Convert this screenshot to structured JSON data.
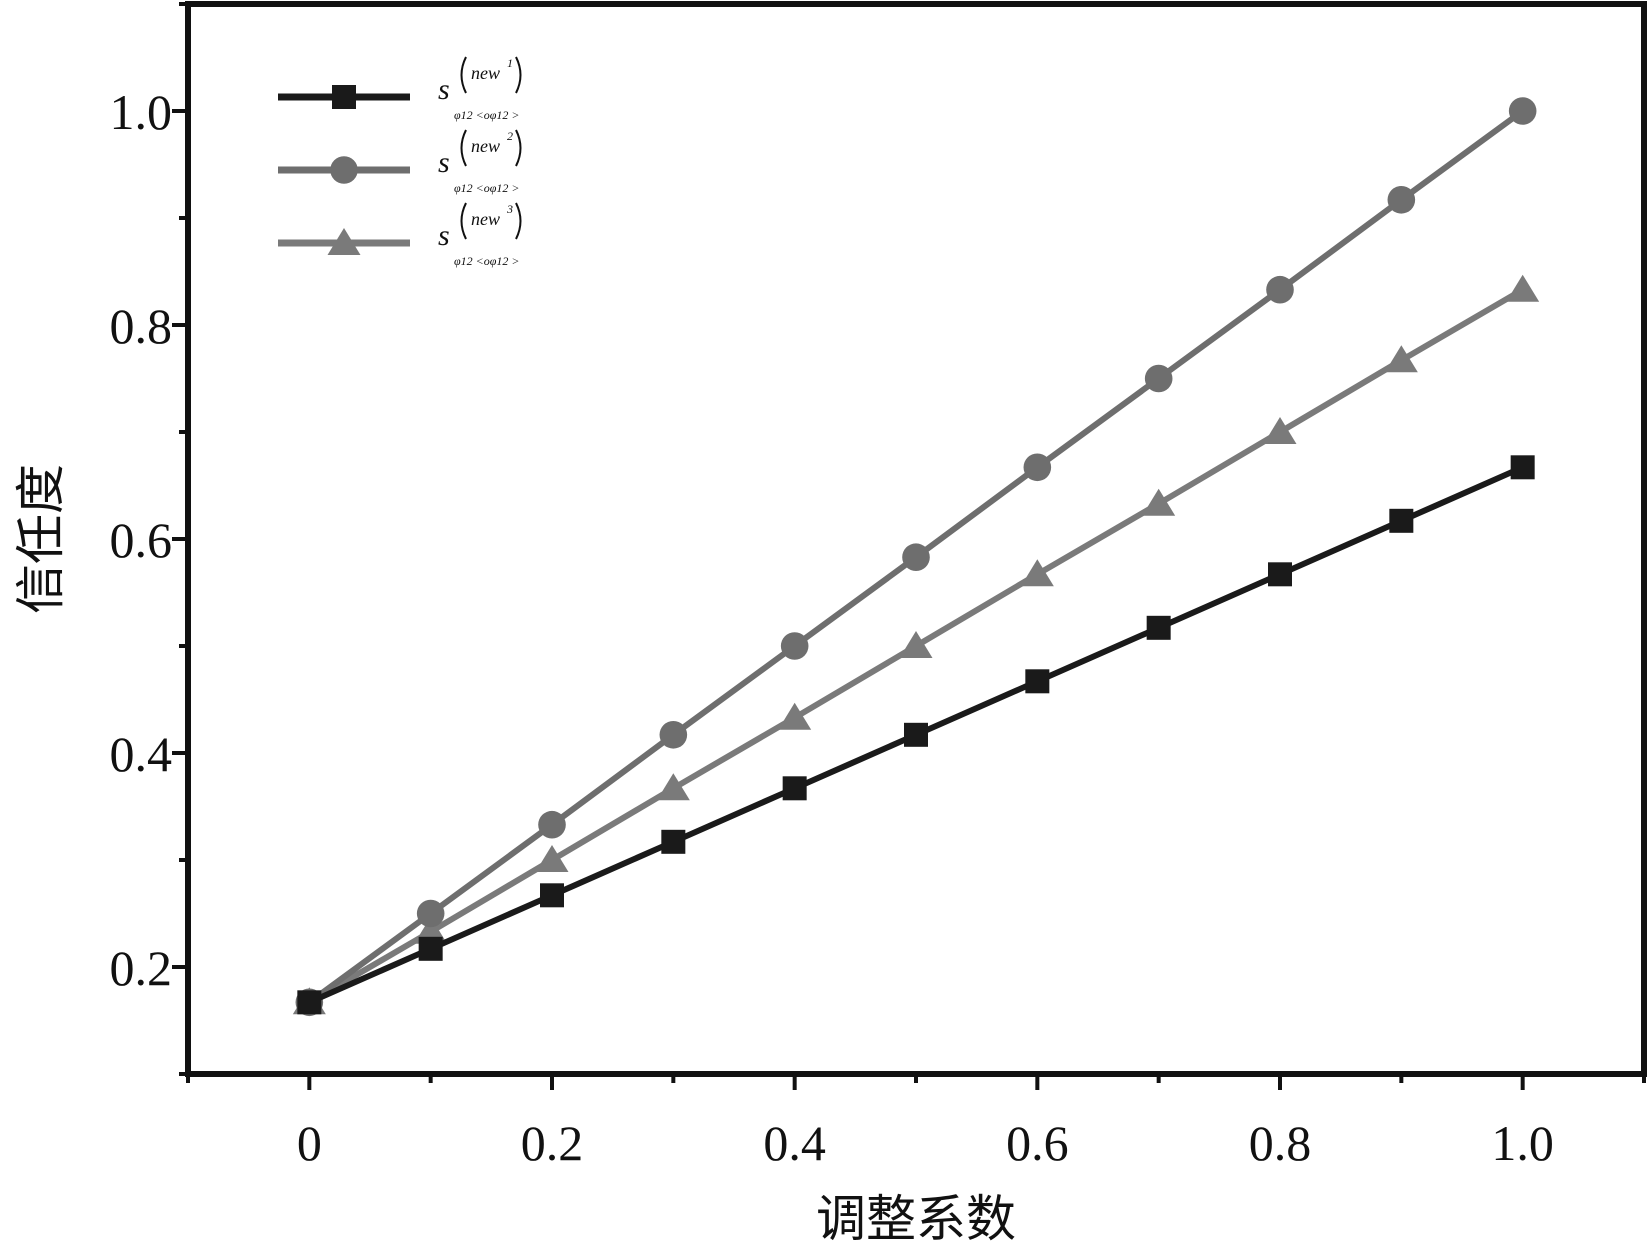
{
  "chart_data": {
    "type": "line",
    "title": "",
    "xlabel": "调整系数",
    "ylabel": "信任度",
    "xlim": [
      -0.1,
      1.1
    ],
    "ylim": [
      0.1,
      1.1
    ],
    "xticks": [
      0,
      0.2,
      0.4,
      0.6,
      0.8,
      1.0
    ],
    "xtick_labels": [
      "0",
      "0.2",
      "0.4",
      "0.6",
      "0.8",
      "1.0"
    ],
    "yticks": [
      0.2,
      0.4,
      0.6,
      0.8,
      1.0
    ],
    "ytick_labels": [
      "0.2",
      "0.4",
      "0.6",
      "0.8",
      "1.0"
    ],
    "grid": false,
    "legend_position": "top-left",
    "x": [
      0,
      0.1,
      0.2,
      0.3,
      0.4,
      0.5,
      0.6,
      0.7,
      0.8,
      0.9,
      1.0
    ],
    "series": [
      {
        "name": "S(new1) φ12<oφ12>",
        "label_main": "s",
        "label_sup": "new",
        "label_sup_index": "1",
        "label_sub": "φ12 <oφ12 >",
        "marker": "square",
        "color": "#1a1a1a",
        "values": [
          0.167,
          0.217,
          0.267,
          0.317,
          0.367,
          0.417,
          0.467,
          0.517,
          0.567,
          0.617,
          0.667
        ]
      },
      {
        "name": "S(new2) φ12<oφ12>",
        "label_main": "s",
        "label_sup": "new",
        "label_sup_index": "2",
        "label_sub": "φ12 <oφ12 >",
        "marker": "circle",
        "color": "#6e6e6e",
        "values": [
          0.167,
          0.25,
          0.333,
          0.417,
          0.5,
          0.583,
          0.667,
          0.75,
          0.833,
          0.917,
          1.0
        ]
      },
      {
        "name": "S(new3) φ12<oφ12>",
        "label_main": "s",
        "label_sup": "new",
        "label_sup_index": "3",
        "label_sub": "φ12 <oφ12 >",
        "marker": "triangle",
        "color": "#7a7a7a",
        "values": [
          0.167,
          0.233,
          0.3,
          0.367,
          0.433,
          0.5,
          0.567,
          0.633,
          0.7,
          0.767,
          0.833
        ]
      }
    ]
  }
}
